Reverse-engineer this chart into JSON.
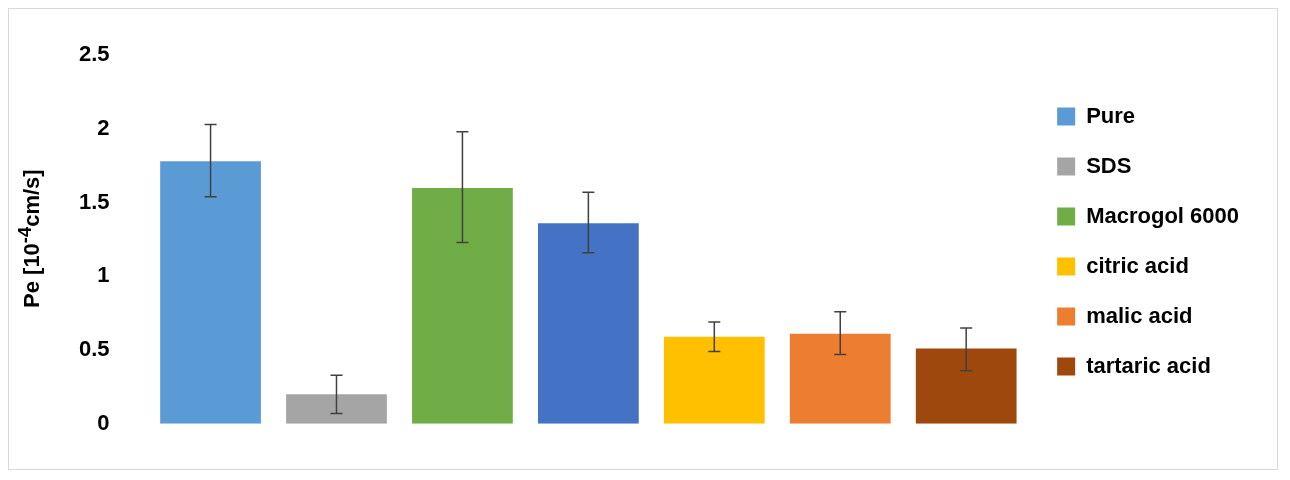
{
  "chart_data": {
    "type": "bar",
    "ylabel": "Pe [10$^{-4}$cm/s]",
    "stacked": true,
    "categories": [
      null,
      null,
      null,
      null,
      null,
      null,
      null
    ],
    "series": [
      {
        "name": "Pure",
        "color": "#5b9bd5",
        "values": [
          1.78,
          null,
          null,
          null,
          null,
          null,
          null
        ],
        "errors": [
          [
            1.54,
            2.03
          ],
          null,
          null,
          null,
          null,
          null,
          null
        ]
      },
      {
        "name": "SDS",
        "color": "#a5a5a5",
        "values": [
          null,
          0.2,
          null,
          null,
          null,
          null,
          null
        ],
        "errors": [
          null,
          [
            0.07,
            0.33
          ],
          null,
          null,
          null,
          null,
          null
        ]
      },
      {
        "name": "Macrogol 6000",
        "color": "#70ad47",
        "values": [
          null,
          null,
          1.6,
          null,
          null,
          null,
          null
        ],
        "errors": [
          null,
          null,
          [
            1.23,
            1.98
          ],
          null,
          null,
          null,
          null
        ]
      },
      {
        "color": "#4472c4",
        "values": [
          null,
          null,
          null,
          1.36,
          null,
          null,
          null
        ],
        "errors": [
          null,
          null,
          null,
          [
            1.16,
            1.57
          ],
          null,
          null,
          null
        ]
      },
      {
        "name": "citric acid",
        "color": "#ffc000",
        "values": [
          null,
          null,
          null,
          null,
          0.59,
          null,
          null
        ],
        "errors": [
          null,
          null,
          null,
          null,
          [
            0.49,
            0.69
          ],
          null,
          null
        ]
      },
      {
        "name": "malic acid",
        "color": "#ed7d31",
        "values": [
          null,
          null,
          null,
          null,
          null,
          0.61,
          null
        ],
        "errors": [
          null,
          null,
          null,
          null,
          null,
          [
            0.47,
            0.76
          ],
          null
        ]
      },
      {
        "name": "tartaric acid",
        "color": "#9e480e",
        "values": [
          null,
          null,
          null,
          null,
          null,
          null,
          0.51
        ],
        "errors": [
          null,
          null,
          null,
          null,
          null,
          null,
          [
            0.36,
            0.65
          ]
        ]
      }
    ],
    "ylim": [
      0,
      2.5
    ],
    "yticks": [
      0,
      0.5,
      1,
      1.5,
      2,
      2.5
    ],
    "grid": false,
    "legend": "right"
  }
}
